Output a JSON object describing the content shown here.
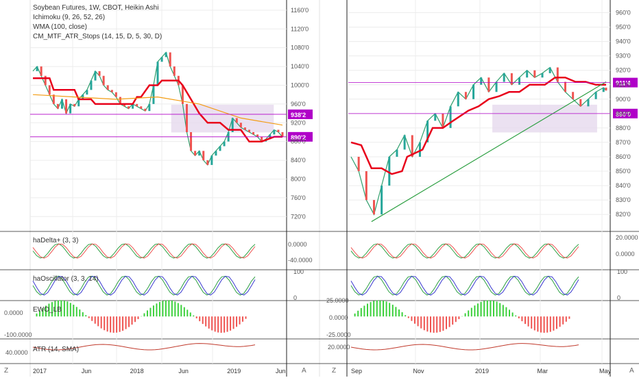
{
  "chart_data": [
    {
      "type": "line",
      "title": "Soybean Futures, 1W, CBOT, Heikin Ashi",
      "legend": [
        {
          "name": "Ichimoku (9, 26, 52, 26)"
        },
        {
          "name": "WMA (100, close)"
        },
        {
          "name": "CM_MTF_ATR_Stops (14, 15, D, 5, 30, D)"
        }
      ],
      "x_ticks": [
        "2017",
        "Jun",
        "2018",
        "Jun",
        "2019",
        "Jun"
      ],
      "ylim": [
        700,
        1170
      ],
      "y_ticks": [
        "1160'0",
        "1120'0",
        "1080'0",
        "1040'0",
        "1000'0",
        "960'0",
        "920'0",
        "880'0",
        "840'0",
        "800'0",
        "760'0",
        "720'0"
      ],
      "price_badges": [
        {
          "label": "938'2",
          "value": 938,
          "color": "#b000c8"
        },
        {
          "label": "890'2",
          "value": 890,
          "color": "#b000c8"
        }
      ],
      "series": [
        {
          "name": "price",
          "color": "#2e9e6b",
          "x": [
            0,
            2,
            4,
            6,
            8,
            10,
            12,
            14,
            16,
            18,
            20,
            22,
            24,
            26,
            28,
            30,
            32,
            34,
            36,
            38,
            40,
            42,
            44,
            46,
            48,
            50,
            52,
            54,
            56,
            58,
            60,
            62,
            64,
            66,
            68,
            70,
            72,
            74,
            76,
            78,
            80,
            82,
            84,
            86,
            88,
            90,
            92,
            94,
            96,
            98,
            100,
            102,
            104,
            106,
            108,
            110,
            112,
            114,
            116,
            118,
            120
          ],
          "y": [
            1030,
            1040,
            1020,
            1000,
            980,
            960,
            950,
            970,
            940,
            960,
            955,
            970,
            980,
            990,
            1010,
            1030,
            1020,
            1000,
            990,
            985,
            975,
            960,
            955,
            950,
            960,
            955,
            950,
            945,
            960,
            1000,
            1050,
            1060,
            1070,
            1040,
            1020,
            1000,
            960,
            900,
            860,
            850,
            860,
            840,
            830,
            850,
            860,
            870,
            880,
            900,
            930,
            920,
            910,
            905,
            900,
            895,
            890,
            880,
            885,
            895,
            905,
            900,
            890
          ]
        },
        {
          "name": "stop",
          "color": "#e8001a",
          "x": [
            0,
            8,
            10,
            20,
            22,
            28,
            30,
            48,
            50,
            52,
            56,
            60,
            62,
            70,
            72,
            80,
            84,
            90,
            94,
            100,
            104,
            110,
            116,
            120
          ],
          "y": [
            1015,
            1015,
            990,
            990,
            970,
            970,
            960,
            960,
            975,
            975,
            1000,
            1000,
            1010,
            1010,
            1000,
            940,
            920,
            920,
            905,
            905,
            880,
            880,
            890,
            890
          ]
        },
        {
          "name": "wma",
          "color": "#f39c12",
          "x": [
            0,
            20,
            40,
            60,
            80,
            100,
            120
          ],
          "y": [
            980,
            975,
            970,
            975,
            960,
            930,
            915
          ]
        }
      ]
    },
    {
      "type": "line",
      "title": "",
      "x_ticks": [
        "Sep",
        "Nov",
        "2019",
        "Mar",
        "May"
      ],
      "ylim": [
        812,
        965
      ],
      "y_ticks": [
        "960'0",
        "950'0",
        "940'0",
        "930'0",
        "920'0",
        "910'0",
        "900'0",
        "890'0",
        "880'0",
        "870'0",
        "860'0",
        "850'0",
        "840'0",
        "830'0",
        "820'0"
      ],
      "price_badges": [
        {
          "label": "911'4",
          "value": 911.5,
          "color": "#b000c8"
        },
        {
          "label": "890'0",
          "value": 890,
          "color": "#b000c8"
        }
      ],
      "series": [
        {
          "name": "price",
          "color": "#2e9e6b",
          "x": [
            0,
            3,
            6,
            9,
            12,
            15,
            18,
            21,
            24,
            27,
            30,
            33,
            36,
            39,
            42,
            45,
            48,
            51,
            54,
            57,
            60,
            63,
            66,
            69,
            72,
            75,
            78,
            81,
            84,
            87,
            90,
            93,
            96,
            99,
            100
          ],
          "y": [
            860,
            850,
            830,
            820,
            840,
            860,
            865,
            875,
            860,
            870,
            885,
            890,
            880,
            895,
            905,
            900,
            910,
            915,
            905,
            912,
            918,
            910,
            915,
            920,
            915,
            918,
            922,
            912,
            905,
            900,
            895,
            900,
            905,
            908,
            906
          ]
        },
        {
          "name": "stop",
          "color": "#e8001a",
          "x": [
            0,
            4,
            8,
            12,
            16,
            20,
            22,
            28,
            32,
            36,
            40,
            46,
            50,
            54,
            58,
            62,
            66,
            70,
            76,
            80,
            84,
            88,
            92,
            96,
            100
          ],
          "y": [
            870,
            868,
            852,
            852,
            848,
            850,
            860,
            865,
            880,
            880,
            885,
            892,
            895,
            900,
            902,
            905,
            905,
            910,
            910,
            915,
            915,
            912,
            912,
            910,
            910
          ]
        },
        {
          "name": "trendline",
          "color": "#2ea043",
          "x": [
            8,
            100
          ],
          "y": [
            815,
            912
          ]
        }
      ]
    },
    {
      "type": "area",
      "legend_label": "haDelta+ (3, 3)",
      "y_ticks_left": [
        "0.0000",
        "-40.0000"
      ],
      "y_ticks_right": [
        "20.0000",
        "0.0000"
      ],
      "ylim": [
        -60,
        30
      ]
    },
    {
      "type": "line",
      "legend_label": "haOscillator (3, 3, 14)",
      "y_ticks_left": [
        "100",
        "0"
      ],
      "y_ticks_right": [
        "100",
        "0"
      ],
      "ylim": [
        0,
        100
      ],
      "levels": [
        50
      ]
    },
    {
      "type": "bar",
      "legend_label": "EWO_LB",
      "y_ticks_left": [
        "0.0000",
        "-100.0000"
      ],
      "y_ticks_right": [
        "25.0000",
        "0.0000",
        "-25.0000"
      ]
    },
    {
      "type": "line",
      "legend_label": "ATR (14, SMA)",
      "y_ticks_left": [
        "40.0000"
      ],
      "y_ticks_right": [
        "20.0000"
      ]
    }
  ],
  "ui": {
    "corner_left": "Z",
    "corner_right": "A",
    "corner_left_2": "Z",
    "corner_right_2": "A"
  },
  "colors": {
    "up": "#26a69a",
    "down": "#ef5350",
    "stop": "#e8001a",
    "kumo": "#e6d9ee",
    "kijun_green": "#2ea043",
    "wma": "#f39c12",
    "tenkan": "#3a3ad0",
    "badge": "#b000c8",
    "grid": "#ececec"
  }
}
